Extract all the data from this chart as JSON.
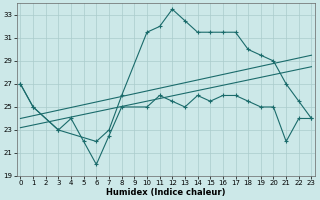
{
  "xlabel": "Humidex (Indice chaleur)",
  "bg_color": "#cce8e8",
  "grid_color": "#aacccc",
  "line_color": "#1a6b6b",
  "line1_x": [
    0,
    1,
    3,
    6,
    7,
    8,
    10,
    11,
    12,
    13,
    14,
    15,
    16,
    17,
    18,
    19,
    20,
    21,
    22,
    23
  ],
  "line1_y": [
    27,
    25,
    23,
    22,
    23,
    26,
    31.5,
    32,
    33.5,
    32.5,
    31.5,
    31.5,
    31.5,
    31.5,
    30.0,
    29.5,
    29.0,
    27.0,
    25.5,
    24.0
  ],
  "line2_x": [
    0,
    1,
    3,
    4,
    5,
    6,
    7,
    8,
    10,
    11,
    12,
    13,
    14,
    15,
    16,
    17,
    18,
    19,
    20,
    21,
    22,
    23
  ],
  "line2_y": [
    27,
    25,
    23,
    24,
    22,
    20,
    22.5,
    25,
    25,
    26,
    25.5,
    25,
    26,
    25.5,
    26,
    26,
    25.5,
    25,
    25,
    22,
    24,
    24
  ],
  "line3_x": [
    0,
    23
  ],
  "line3_y": [
    23.2,
    28.5
  ],
  "line4_x": [
    0,
    23
  ],
  "line4_y": [
    24.0,
    29.5
  ],
  "xlim": [
    0,
    23
  ],
  "ylim": [
    19,
    34
  ],
  "yticks": [
    19,
    21,
    23,
    25,
    27,
    29,
    31,
    33
  ],
  "xticks": [
    0,
    1,
    2,
    3,
    4,
    5,
    6,
    7,
    8,
    9,
    10,
    11,
    12,
    13,
    14,
    15,
    16,
    17,
    18,
    19,
    20,
    21,
    22,
    23
  ],
  "xlabel_fontsize": 6.0,
  "tick_fontsize": 5.0
}
